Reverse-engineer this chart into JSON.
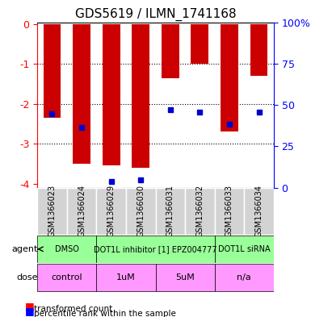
{
  "title": "GDS5619 / ILMN_1741168",
  "samples": [
    "GSM1366023",
    "GSM1366024",
    "GSM1366029",
    "GSM1366030",
    "GSM1366031",
    "GSM1366032",
    "GSM1366033",
    "GSM1366034"
  ],
  "red_values": [
    -2.35,
    -3.5,
    -3.55,
    -3.6,
    -1.35,
    -1.0,
    -2.7,
    -1.3
  ],
  "blue_values": [
    -2.25,
    -2.6,
    -3.95,
    -3.9,
    -2.15,
    -2.2,
    -2.5,
    -2.2
  ],
  "ylim": [
    -4.1,
    0
  ],
  "yticks_left": [
    0,
    -1,
    -2,
    -3,
    -4
  ],
  "yticks_right": [
    0,
    25,
    50,
    75,
    100
  ],
  "ytick_labels_left": [
    "0",
    "-1",
    "-2",
    "-3",
    "-4"
  ],
  "ytick_labels_right": [
    "0%",
    "25",
    "50",
    "75",
    "100%"
  ],
  "bar_color": "#cc0000",
  "blue_color": "#0000cc",
  "bar_width": 0.4,
  "agent_groups": [
    {
      "label": "DMSO",
      "cols": [
        0,
        1
      ],
      "color": "#99ff99"
    },
    {
      "label": "DOT1L inhibitor [1] EPZ004777",
      "cols": [
        2,
        3,
        4,
        5
      ],
      "color": "#99ff99"
    },
    {
      "label": "DOT1L siRNA",
      "cols": [
        6,
        7
      ],
      "color": "#99ff99"
    }
  ],
  "dose_groups": [
    {
      "label": "control",
      "cols": [
        0,
        1
      ],
      "color": "#ff99ff"
    },
    {
      "label": "1uM",
      "cols": [
        2,
        3
      ],
      "color": "#ff99ff"
    },
    {
      "label": "5uM",
      "cols": [
        4,
        5
      ],
      "color": "#ff99ff"
    },
    {
      "label": "n/a",
      "cols": [
        6,
        7
      ],
      "color": "#ff99ff"
    }
  ],
  "agent_label": "agent",
  "dose_label": "dose",
  "legend_red": "transformed count",
  "legend_blue": "percentile rank within the sample",
  "background_color": "#ffffff",
  "plot_bg_color": "#ffffff",
  "grid_color": "#000000"
}
